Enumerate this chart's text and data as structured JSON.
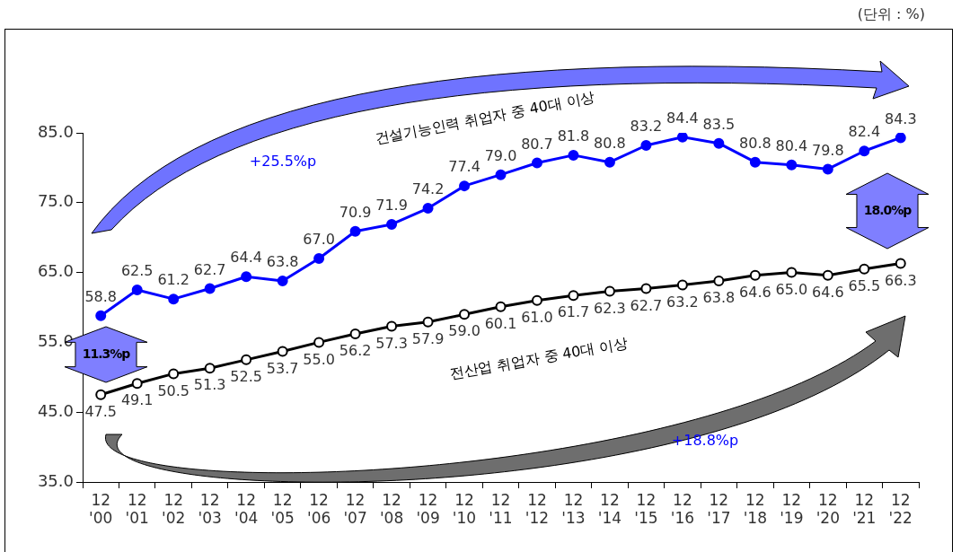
{
  "chart_data": {
    "type": "line",
    "categories": [
      "12\n'00",
      "12\n'01",
      "12\n'02",
      "12\n'03",
      "12\n'04",
      "12\n'05",
      "12\n'06",
      "12\n'07",
      "12\n'08",
      "12\n'09",
      "12\n'10",
      "12\n'11",
      "12\n'12",
      "12\n'13",
      "12\n'14",
      "12\n'15",
      "12\n'16",
      "12\n'17",
      "12\n'18",
      "12\n'19",
      "12\n'20",
      "12\n'21",
      "12\n'22"
    ],
    "series": [
      {
        "name": "건설기능인력 취업자 중 40대 이상",
        "color": "#0000ff",
        "values": [
          58.8,
          62.5,
          61.2,
          62.7,
          64.4,
          63.8,
          67.0,
          70.9,
          71.9,
          74.2,
          77.4,
          79.0,
          80.7,
          81.8,
          80.8,
          83.2,
          84.4,
          83.5,
          80.8,
          80.4,
          79.8,
          82.4,
          84.3
        ],
        "value_labels": [
          "58.8",
          "62.5",
          "61.2",
          "62.7",
          "64.4",
          "63.8",
          "67.0",
          "70.9",
          "71.9",
          "74.2",
          "77.4",
          "79.0",
          "80.7",
          "81.8",
          "80.8",
          "83.2",
          "84.4",
          "83.5",
          "80.8",
          "80.4",
          "79.8",
          "82.4",
          "84.3"
        ]
      },
      {
        "name": "전산업 취업자 중 40대 이상",
        "color": "#000000",
        "values": [
          47.5,
          49.1,
          50.5,
          51.3,
          52.5,
          53.7,
          55.0,
          56.2,
          57.3,
          57.9,
          59.0,
          60.1,
          61.0,
          61.7,
          62.3,
          62.7,
          63.2,
          63.8,
          64.6,
          65.0,
          64.6,
          65.5,
          66.3
        ],
        "value_labels": [
          "47.5",
          "49.1",
          "50.5",
          "51.3",
          "52.5",
          "53.7",
          "55.0",
          "56.2",
          "57.3",
          "57.9",
          "59.0",
          "60.1",
          "61.0",
          "61.7",
          "62.3",
          "62.7",
          "63.2",
          "63.8",
          "64.6",
          "65.0",
          "64.6",
          "65.5",
          "66.3"
        ]
      }
    ],
    "ylim": [
      35,
      85
    ],
    "yticks": [
      {
        "value": 35,
        "label": "35.0"
      },
      {
        "value": 45,
        "label": "45.0"
      },
      {
        "value": 55,
        "label": "55.0"
      },
      {
        "value": 65,
        "label": "65.0"
      },
      {
        "value": 75,
        "label": "75.0"
      },
      {
        "value": 85,
        "label": "85.0"
      }
    ],
    "grid": false,
    "legend": false,
    "marker": "circle",
    "line_style": "solid",
    "annotations": [
      "(단위 : %)",
      "+25.5%p",
      "+18.8%p",
      "11.3%p",
      "18.0%p"
    ]
  }
}
